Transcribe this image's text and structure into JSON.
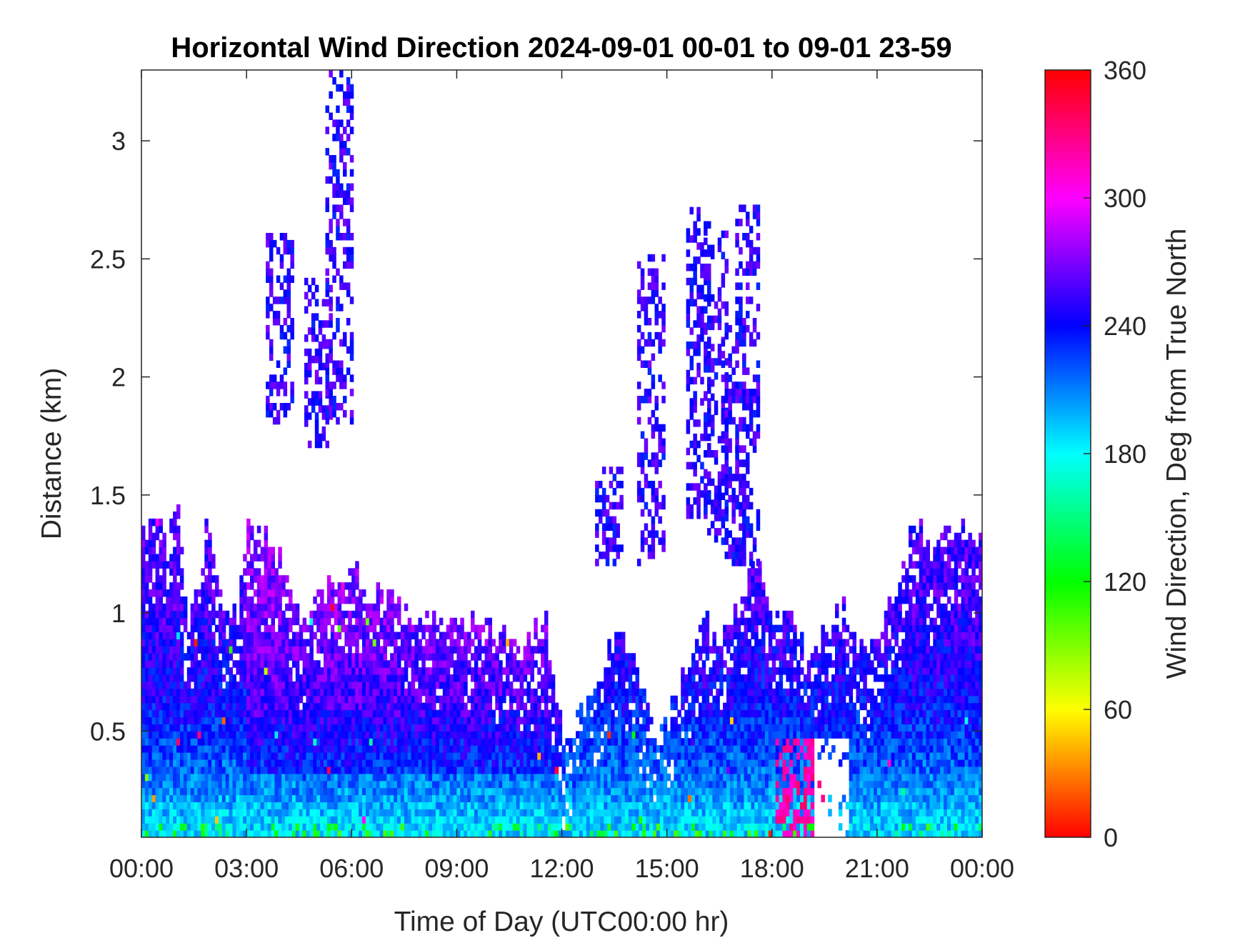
{
  "chart_data": {
    "type": "heatmap",
    "title": "Horizontal Wind Direction 2024-09-01 00-01 to 09-01 23-59",
    "xlabel": "Time of Day (UTC00:00 hr)",
    "ylabel": "Distance (km)",
    "colorbar_label": "Wind Direction, Deg from True North",
    "x_ticks": [
      "00:00",
      "03:00",
      "06:00",
      "09:00",
      "12:00",
      "15:00",
      "18:00",
      "21:00",
      "00:00"
    ],
    "x_tick_hours": [
      0,
      3,
      6,
      9,
      12,
      15,
      18,
      21,
      24
    ],
    "y_ticks": [
      "0.5",
      "1",
      "1.5",
      "2",
      "2.5",
      "3"
    ],
    "y_tick_values": [
      0.5,
      1.0,
      1.5,
      2.0,
      2.5,
      3.0
    ],
    "xlim_hours": [
      0,
      24
    ],
    "ylim_km": [
      0.05,
      3.3
    ],
    "colorbar_ticks": [
      "0",
      "60",
      "120",
      "180",
      "240",
      "300",
      "360"
    ],
    "colorbar_tick_values": [
      0,
      60,
      120,
      180,
      240,
      300,
      360
    ],
    "clim_deg": [
      0,
      360
    ],
    "colormap": "hsv",
    "grid": false,
    "top_of_return_km": [
      [
        0.0,
        1.35
      ],
      [
        1.0,
        1.4
      ],
      [
        1.3,
        0.95
      ],
      [
        1.8,
        1.35
      ],
      [
        2.3,
        1.0
      ],
      [
        2.7,
        1.0
      ],
      [
        3.0,
        1.35
      ],
      [
        3.5,
        1.3
      ],
      [
        4.0,
        1.2
      ],
      [
        4.5,
        0.95
      ],
      [
        5.0,
        1.1
      ],
      [
        5.5,
        1.1
      ],
      [
        6.0,
        1.2
      ],
      [
        6.5,
        1.07
      ],
      [
        7.0,
        1.05
      ],
      [
        7.5,
        1.0
      ],
      [
        8.0,
        0.97
      ],
      [
        9.0,
        0.95
      ],
      [
        10.0,
        0.9
      ],
      [
        10.8,
        0.85
      ],
      [
        11.5,
        0.95
      ],
      [
        12.0,
        0.45
      ],
      [
        12.5,
        0.55
      ],
      [
        13.0,
        0.7
      ],
      [
        13.5,
        0.9
      ],
      [
        14.0,
        0.8
      ],
      [
        14.5,
        0.5
      ],
      [
        15.0,
        0.55
      ],
      [
        15.5,
        0.75
      ],
      [
        16.0,
        0.95
      ],
      [
        16.5,
        0.85
      ],
      [
        17.0,
        1.05
      ],
      [
        17.5,
        1.2
      ],
      [
        18.0,
        1.0
      ],
      [
        18.5,
        0.95
      ],
      [
        19.0,
        0.8
      ],
      [
        19.5,
        0.9
      ],
      [
        20.0,
        1.0
      ],
      [
        20.5,
        0.85
      ],
      [
        21.0,
        0.9
      ],
      [
        21.5,
        1.1
      ],
      [
        22.0,
        1.4
      ],
      [
        22.5,
        1.2
      ],
      [
        23.0,
        1.35
      ],
      [
        24.0,
        1.3
      ]
    ],
    "dominant_direction_by_height_deg": [
      {
        "height_km": 0.1,
        "direction_deg": 190
      },
      {
        "height_km": 0.3,
        "direction_deg": 215
      },
      {
        "height_km": 0.6,
        "direction_deg": 240
      },
      {
        "height_km": 1.0,
        "direction_deg": 255
      },
      {
        "height_km": 2.0,
        "direction_deg": 260
      }
    ],
    "notable_features": {
      "low_level_afternoon_shift_deg": 320,
      "low_level_afternoon_shift_hours": [
        18.0,
        19.5
      ],
      "gap_hours": [
        19.2,
        20.2
      ],
      "gap_top_km": 0.45
    }
  }
}
